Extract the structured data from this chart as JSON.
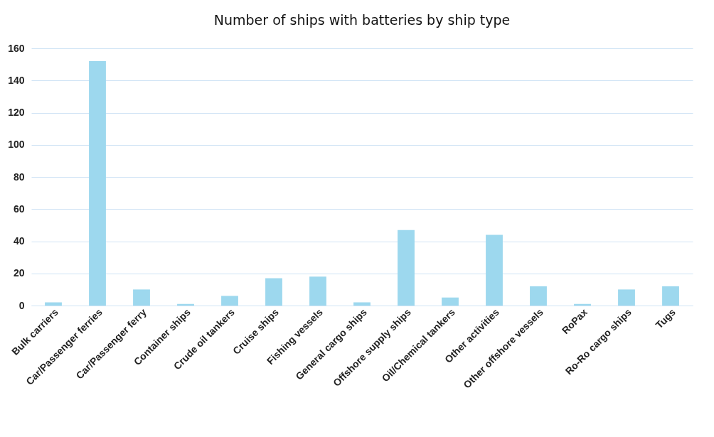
{
  "chart_data": {
    "type": "bar",
    "title": "Number of ships with batteries by ship type",
    "categories": [
      "Bulk carriers",
      "Car/Passenger ferries",
      "Car/Passenger ferry",
      "Container ships",
      "Crude oil tankers",
      "Cruise ships",
      "Fishing vessels",
      "General cargo ships",
      "Offshore supply ships",
      "Oil/Chemical tankers",
      "Other activities",
      "Other offshore vessels",
      "RoPax",
      "Ro-Ro cargo ships",
      "Tugs"
    ],
    "values": [
      2,
      152,
      10,
      1,
      6,
      17,
      18,
      2,
      47,
      5,
      44,
      12,
      1,
      10,
      12
    ],
    "color": "#9dd8ee",
    "ylim": [
      0,
      160
    ],
    "yticks": [
      0,
      20,
      40,
      60,
      80,
      100,
      120,
      140,
      160
    ],
    "grid": "y"
  }
}
